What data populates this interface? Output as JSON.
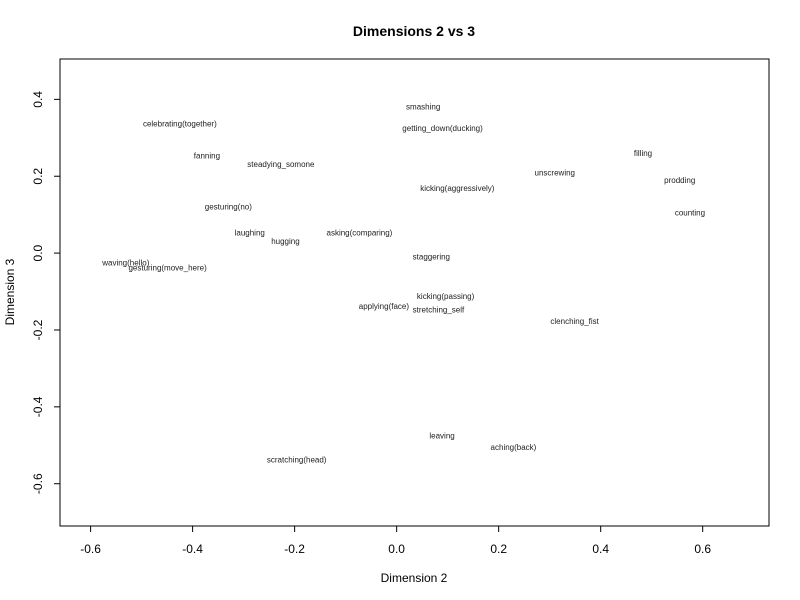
{
  "chart_data": {
    "type": "scatter",
    "title": "Dimensions 2 vs 3",
    "xlabel": "Dimension 2",
    "ylabel": "Dimension 3",
    "xlim": [
      -0.66,
      0.73
    ],
    "ylim": [
      -0.71,
      0.505
    ],
    "xticks": [
      -0.6,
      -0.4,
      -0.2,
      0.0,
      0.2,
      0.4,
      0.6
    ],
    "xtick_labels": [
      "-0.6",
      "-0.4",
      "-0.2",
      "0.0",
      "0.2",
      "0.4",
      "0.6"
    ],
    "yticks": [
      -0.6,
      -0.4,
      -0.2,
      0.0,
      0.2,
      0.4
    ],
    "ytick_labels": [
      "-0.6",
      "-0.4",
      "-0.2",
      "0.0",
      "0.2",
      "0.4"
    ],
    "grid": false,
    "points": [
      {
        "label": "smashing",
        "x": 0.052,
        "y": 0.382
      },
      {
        "label": "celebrating(together)",
        "x": -0.425,
        "y": 0.337
      },
      {
        "label": "getting_down(ducking)",
        "x": 0.09,
        "y": 0.326
      },
      {
        "label": "filling",
        "x": 0.483,
        "y": 0.261
      },
      {
        "label": "fanning",
        "x": -0.372,
        "y": 0.254
      },
      {
        "label": "steadying_somone",
        "x": -0.227,
        "y": 0.232
      },
      {
        "label": "unscrewing",
        "x": 0.31,
        "y": 0.21
      },
      {
        "label": "prodding",
        "x": 0.555,
        "y": 0.19
      },
      {
        "label": "kicking(aggressively)",
        "x": 0.119,
        "y": 0.17
      },
      {
        "label": "gesturing(no)",
        "x": -0.33,
        "y": 0.121
      },
      {
        "label": "counting",
        "x": 0.575,
        "y": 0.106
      },
      {
        "label": "laughing",
        "x": -0.288,
        "y": 0.054
      },
      {
        "label": "asking(comparing)",
        "x": -0.073,
        "y": 0.054
      },
      {
        "label": "hugging",
        "x": -0.218,
        "y": 0.031
      },
      {
        "label": "staggering",
        "x": 0.068,
        "y": -0.009
      },
      {
        "label": "waving(hello)",
        "x": -0.531,
        "y": -0.025
      },
      {
        "label": "gesturing(move_here)",
        "x": -0.449,
        "y": -0.037
      },
      {
        "label": "kicking(passing)",
        "x": 0.096,
        "y": -0.111
      },
      {
        "label": "applying(face)",
        "x": -0.025,
        "y": -0.138
      },
      {
        "label": "stretching_self",
        "x": 0.082,
        "y": -0.147
      },
      {
        "label": "clenching_fist",
        "x": 0.349,
        "y": -0.177
      },
      {
        "label": "leaving",
        "x": 0.089,
        "y": -0.474
      },
      {
        "label": "aching(back)",
        "x": 0.229,
        "y": -0.504
      },
      {
        "label": "scratching(head)",
        "x": -0.196,
        "y": -0.537
      }
    ]
  }
}
